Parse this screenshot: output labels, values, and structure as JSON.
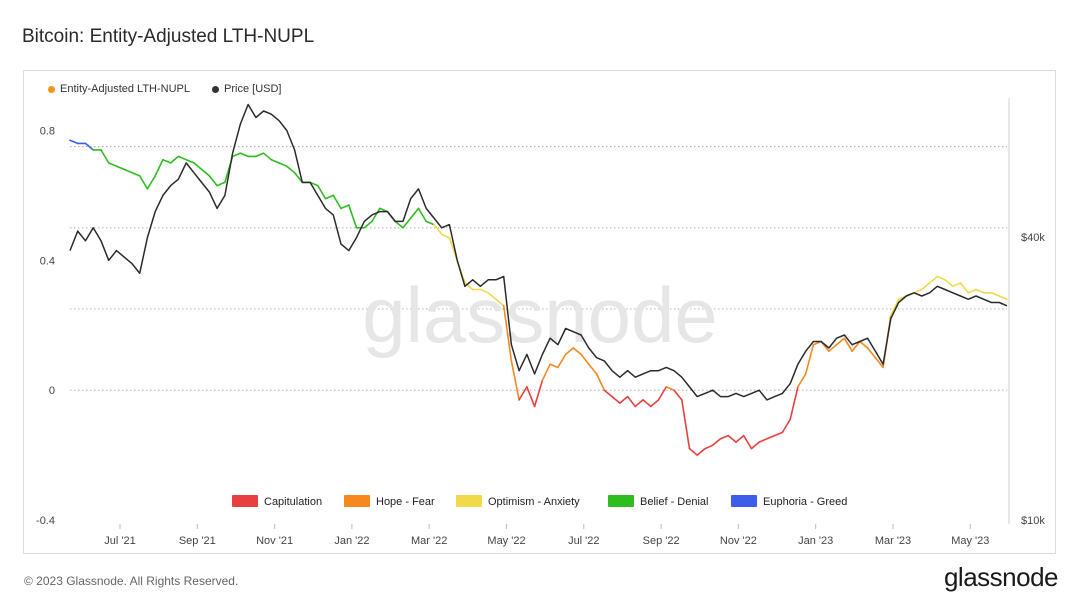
{
  "title": "Bitcoin: Entity-Adjusted LTH-NUPL",
  "legend_top": [
    {
      "label": "Entity-Adjusted LTH-NUPL",
      "color": "#f7931a"
    },
    {
      "label": "Price [USD]",
      "color": "#333333"
    }
  ],
  "watermark": "glassnode",
  "footer": "© 2023 Glassnode. All Rights Reserved.",
  "brand": "glassnode",
  "chart_data": {
    "type": "line",
    "x_ticks": [
      "Jul '21",
      "Sep '21",
      "Nov '21",
      "Jan '22",
      "Mar '22",
      "May '22",
      "Jul '22",
      "Sep '22",
      "Nov '22",
      "Jan '23",
      "Mar '23",
      "May '23"
    ],
    "y_left_ticks": [
      "0.8",
      "0.4",
      "0",
      "-0.4"
    ],
    "y_right_ticks": [
      "$40k",
      "$10k"
    ],
    "y_left_range": [
      -0.4,
      0.9
    ],
    "zones_legend": [
      {
        "label": "Capitulation",
        "color": "#e8403f"
      },
      {
        "label": "Hope - Fear",
        "color": "#f5881f"
      },
      {
        "label": "Optimism - Anxiety",
        "color": "#f2d94a"
      },
      {
        "label": "Belief - Denial",
        "color": "#2ebd1f"
      },
      {
        "label": "Euphoria - Greed",
        "color": "#3d5ee8"
      }
    ],
    "thresholds": [
      0.75,
      0.5,
      0.25,
      0
    ],
    "series": [
      {
        "name": "Entity-Adjusted LTH-NUPL",
        "x": [
          0,
          0.2,
          0.4,
          0.6,
          0.8,
          1.0,
          1.2,
          1.4,
          1.6,
          1.8,
          2.0,
          2.2,
          2.4,
          2.6,
          2.8,
          3.0,
          3.2,
          3.4,
          3.6,
          3.8,
          4.0,
          4.2,
          4.4,
          4.6,
          4.8,
          5.0,
          5.2,
          5.4,
          5.6,
          5.8,
          6.0,
          6.2,
          6.4,
          6.6,
          6.8,
          7.0,
          7.2,
          7.4,
          7.6,
          7.8,
          8.0,
          8.2,
          8.4,
          8.6,
          8.8,
          9.0,
          9.2,
          9.4,
          9.6,
          9.8,
          10.0,
          10.2,
          10.4,
          10.6,
          10.8,
          11.0,
          11.2,
          11.4,
          11.6,
          11.8,
          12.0,
          12.2,
          12.4,
          12.6,
          12.8,
          13.0,
          13.2,
          13.4,
          13.6,
          13.8,
          14.0,
          14.2,
          14.4,
          14.6,
          14.8,
          15.0,
          15.2,
          15.4,
          15.6,
          15.8,
          16.0,
          16.2,
          16.4,
          16.6,
          16.8,
          17.0,
          17.2,
          17.4,
          17.6,
          17.8,
          18.0,
          18.2,
          18.4,
          18.6,
          18.8,
          19.0,
          19.2,
          19.4,
          19.6,
          19.8,
          20.0,
          20.2,
          20.4,
          20.6,
          20.8,
          21.0,
          21.2,
          21.4,
          21.6,
          21.8,
          22.0,
          22.2,
          22.4,
          22.6,
          22.8,
          23.0,
          23.2,
          23.4,
          23.6,
          23.8,
          24.0,
          24.2
        ],
        "values": [
          0.77,
          0.76,
          0.76,
          0.74,
          0.74,
          0.7,
          0.69,
          0.68,
          0.67,
          0.66,
          0.62,
          0.66,
          0.71,
          0.7,
          0.72,
          0.71,
          0.7,
          0.68,
          0.66,
          0.63,
          0.64,
          0.72,
          0.73,
          0.72,
          0.72,
          0.73,
          0.71,
          0.7,
          0.69,
          0.67,
          0.64,
          0.64,
          0.63,
          0.59,
          0.6,
          0.56,
          0.57,
          0.5,
          0.5,
          0.52,
          0.56,
          0.55,
          0.52,
          0.5,
          0.53,
          0.56,
          0.52,
          0.51,
          0.48,
          0.47,
          0.4,
          0.33,
          0.31,
          0.31,
          0.3,
          0.28,
          0.26,
          0.09,
          -0.03,
          0.01,
          -0.05,
          0.03,
          0.08,
          0.07,
          0.11,
          0.13,
          0.11,
          0.08,
          0.05,
          0.0,
          -0.02,
          -0.04,
          -0.02,
          -0.05,
          -0.03,
          -0.05,
          -0.03,
          0.01,
          0.0,
          -0.03,
          -0.18,
          -0.2,
          -0.18,
          -0.17,
          -0.15,
          -0.14,
          -0.16,
          -0.14,
          -0.18,
          -0.16,
          -0.15,
          -0.14,
          -0.13,
          -0.09,
          0.01,
          0.05,
          0.14,
          0.15,
          0.12,
          0.14,
          0.16,
          0.12,
          0.15,
          0.13,
          0.1,
          0.07,
          0.23,
          0.28,
          0.29,
          0.3,
          0.31,
          0.33,
          0.35,
          0.34,
          0.32,
          0.33,
          0.3,
          0.31,
          0.3,
          0.3,
          0.29,
          0.28
        ]
      },
      {
        "name": "Price [USD]",
        "x": [
          0,
          0.2,
          0.4,
          0.6,
          0.8,
          1.0,
          1.2,
          1.4,
          1.6,
          1.8,
          2.0,
          2.2,
          2.4,
          2.6,
          2.8,
          3.0,
          3.2,
          3.4,
          3.6,
          3.8,
          4.0,
          4.2,
          4.4,
          4.6,
          4.8,
          5.0,
          5.2,
          5.4,
          5.6,
          5.8,
          6.0,
          6.2,
          6.4,
          6.6,
          6.8,
          7.0,
          7.2,
          7.4,
          7.6,
          7.8,
          8.0,
          8.2,
          8.4,
          8.6,
          8.8,
          9.0,
          9.2,
          9.4,
          9.6,
          9.8,
          10.0,
          10.2,
          10.4,
          10.6,
          10.8,
          11.0,
          11.2,
          11.4,
          11.6,
          11.8,
          12.0,
          12.2,
          12.4,
          12.6,
          12.8,
          13.0,
          13.2,
          13.4,
          13.6,
          13.8,
          14.0,
          14.2,
          14.4,
          14.6,
          14.8,
          15.0,
          15.2,
          15.4,
          15.6,
          15.8,
          16.0,
          16.2,
          16.4,
          16.6,
          16.8,
          17.0,
          17.2,
          17.4,
          17.6,
          17.8,
          18.0,
          18.2,
          18.4,
          18.6,
          18.8,
          19.0,
          19.2,
          19.4,
          19.6,
          19.8,
          20.0,
          20.2,
          20.4,
          20.6,
          20.8,
          21.0,
          21.2,
          21.4,
          21.6,
          21.8,
          22.0,
          22.2,
          22.4,
          22.6,
          22.8,
          23.0,
          23.2,
          23.4,
          23.6,
          23.8,
          24.0,
          24.2
        ],
        "values": [
          0.43,
          0.49,
          0.46,
          0.5,
          0.46,
          0.4,
          0.43,
          0.41,
          0.39,
          0.36,
          0.47,
          0.55,
          0.6,
          0.63,
          0.65,
          0.7,
          0.67,
          0.64,
          0.61,
          0.56,
          0.6,
          0.73,
          0.82,
          0.88,
          0.84,
          0.86,
          0.85,
          0.83,
          0.8,
          0.74,
          0.64,
          0.64,
          0.6,
          0.56,
          0.54,
          0.45,
          0.43,
          0.47,
          0.52,
          0.54,
          0.55,
          0.55,
          0.52,
          0.52,
          0.59,
          0.62,
          0.56,
          0.53,
          0.5,
          0.51,
          0.4,
          0.32,
          0.34,
          0.32,
          0.34,
          0.34,
          0.35,
          0.14,
          0.06,
          0.11,
          0.05,
          0.11,
          0.16,
          0.14,
          0.19,
          0.18,
          0.17,
          0.13,
          0.1,
          0.09,
          0.06,
          0.04,
          0.06,
          0.04,
          0.05,
          0.06,
          0.06,
          0.07,
          0.06,
          0.04,
          0.01,
          -0.02,
          -0.01,
          0.0,
          -0.02,
          -0.02,
          -0.01,
          -0.02,
          -0.01,
          0.0,
          -0.03,
          -0.02,
          -0.01,
          0.02,
          0.08,
          0.12,
          0.15,
          0.15,
          0.13,
          0.16,
          0.17,
          0.14,
          0.15,
          0.16,
          0.12,
          0.08,
          0.22,
          0.27,
          0.29,
          0.3,
          0.29,
          0.3,
          0.32,
          0.31,
          0.3,
          0.29,
          0.28,
          0.29,
          0.28,
          0.27,
          0.27,
          0.26
        ]
      }
    ]
  }
}
